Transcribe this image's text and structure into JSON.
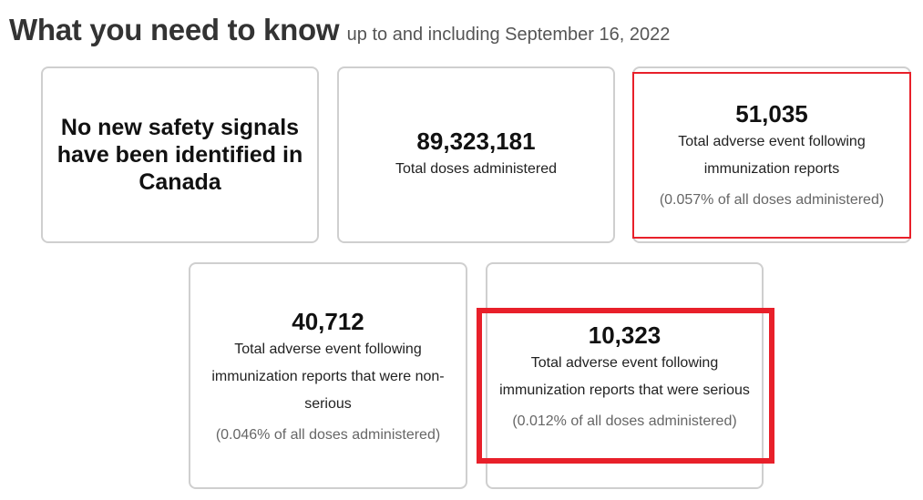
{
  "header": {
    "title": "What you need to know",
    "subtitle": "up to and including September 16, 2022"
  },
  "cards": {
    "signals": {
      "statement": "No new safety signals have been identified in Canada"
    },
    "total_doses": {
      "number": "89,323,181",
      "label": "Total doses administered"
    },
    "total_reports": {
      "number": "51,035",
      "label_line1": "Total adverse event following",
      "label_line2": "immunization reports",
      "percent": "(0.057% of all doses administered)"
    },
    "non_serious": {
      "number": "40,712",
      "label_line1": "Total adverse event following",
      "label_line2": "immunization reports that were non-",
      "label_line3": "serious",
      "percent": "(0.046% of all doses administered)"
    },
    "serious": {
      "number": "10,323",
      "label_line1": "Total adverse event following",
      "label_line2": "immunization reports that were serious",
      "percent": "(0.012% of all doses administered)"
    }
  },
  "colors": {
    "highlight": "#e8202a",
    "card_border": "#cfcfcf"
  }
}
